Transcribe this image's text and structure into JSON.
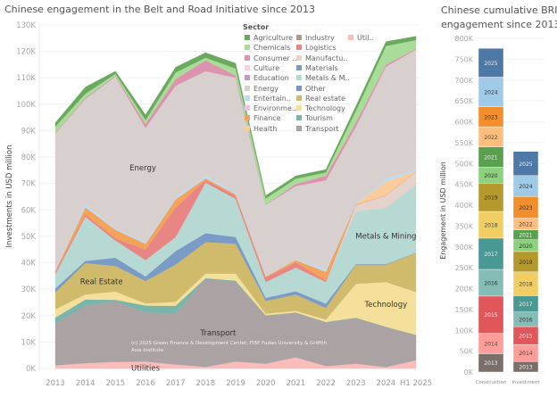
{
  "titles": {
    "main": "Chinese engagement in the Belt and Road Initiative since 2013",
    "side_line1": "Chinese cumulative BRI",
    "side_line2": "engagement since 2013"
  },
  "legend": {
    "title": "Sector",
    "items": [
      {
        "label": "Agriculture",
        "color": "#6aaa5e"
      },
      {
        "label": "Chemicals",
        "color": "#a8dc98"
      },
      {
        "label": "Consumer ..",
        "color": "#dd93b0"
      },
      {
        "label": "Culture",
        "color": "#fad0e0"
      },
      {
        "label": "Education",
        "color": "#c09ac2"
      },
      {
        "label": "Energy",
        "color": "#d7d0ce"
      },
      {
        "label": "Entertain..",
        "color": "#bfdcf2"
      },
      {
        "label": "Environme..",
        "color": "#e6c6e6"
      },
      {
        "label": "Finance",
        "color": "#f4a45a"
      },
      {
        "label": "Health",
        "color": "#fbcb9a"
      },
      {
        "label": "Industry",
        "color": "#b49a8b"
      },
      {
        "label": "Logistics",
        "color": "#e88686"
      },
      {
        "label": "Manufactu..",
        "color": "#e5d2ca"
      },
      {
        "label": "Materials",
        "color": "#7a9bc6"
      },
      {
        "label": "Metals & M..",
        "color": "#b6d9d4"
      },
      {
        "label": "Other",
        "color": "#7a96c0"
      },
      {
        "label": "Real estate",
        "color": "#d0bb6c"
      },
      {
        "label": "Technology",
        "color": "#f4e09a"
      },
      {
        "label": "Tourism",
        "color": "#79b5ac"
      },
      {
        "label": "Transport",
        "color": "#aba3a3"
      },
      {
        "label": "Util..",
        "color": "#fbbcbc"
      }
    ]
  },
  "chart_data": [
    {
      "type": "area",
      "title": "Chinese engagement in the Belt and Road Initiative since 2013",
      "xlabel": "",
      "ylabel": "Investments in USD million",
      "ylim": [
        0,
        130
      ],
      "y_unit": "K",
      "yticks": [
        "0K",
        "10K",
        "20K",
        "30K",
        "40K",
        "50K",
        "60K",
        "70K",
        "80K",
        "90K",
        "100K",
        "110K",
        "120K",
        "130K"
      ],
      "categories": [
        "2013",
        "2014",
        "2015",
        "2016",
        "2017",
        "2018",
        "2019",
        "2020",
        "2021",
        "2022",
        "2023",
        "2024",
        "H1 2025"
      ],
      "series": [
        {
          "name": "Utilities",
          "color": "#fbbcbc",
          "values": [
            1.2,
            2.0,
            2.5,
            2.6,
            1.5,
            0.6,
            2.6,
            1.8,
            4.2,
            0.9,
            1.8,
            0.5,
            3.1
          ]
        },
        {
          "name": "Transport",
          "color": "#aba3a3",
          "values": [
            15.8,
            21.8,
            22.9,
            18.6,
            19.2,
            33.3,
            30.2,
            18.3,
            17.0,
            16.5,
            17.2,
            15.2,
            9.5
          ]
        },
        {
          "name": "Tourism",
          "color": "#79b5ac",
          "values": [
            2.3,
            2.3,
            0.6,
            2.6,
            3.0,
            0.3,
            0.4,
            0,
            0,
            0.2,
            0.2,
            0.1,
            0.1
          ]
        },
        {
          "name": "Technology",
          "color": "#f4e09a",
          "values": [
            3.1,
            1.9,
            3.1,
            0.8,
            1.5,
            1.7,
            2.7,
            0.6,
            0.6,
            0.9,
            12.8,
            16.9,
            16.2
          ]
        },
        {
          "name": "Real estate",
          "color": "#d0bb6c",
          "values": [
            6.4,
            11.9,
            9.7,
            8.5,
            14.1,
            11.9,
            11.3,
            4.9,
            6.2,
            4.4,
            7.3,
            6.6,
            14.8
          ]
        },
        {
          "name": "Materials",
          "color": "#7a9bc6",
          "values": [
            1.5,
            0.8,
            3.1,
            1.7,
            5.1,
            3.4,
            2.5,
            1.1,
            1.2,
            1.6,
            0.2,
            0.2,
            0.1
          ]
        },
        {
          "name": "Metals & Mining",
          "color": "#b6d9d4",
          "values": [
            5.4,
            16.7,
            6.5,
            6.2,
            5.3,
            19.1,
            14.5,
            6.0,
            9.0,
            8.2,
            20.0,
            21.3,
            25.8
          ]
        },
        {
          "name": "Manufacturing",
          "color": "#e5d2ca",
          "values": [
            0,
            0,
            0,
            0,
            0,
            0,
            0,
            0,
            0,
            0,
            2.4,
            4.7,
            4.9
          ]
        },
        {
          "name": "Logistics",
          "color": "#e88686",
          "values": [
            0.8,
            0.9,
            0.9,
            4.0,
            11.1,
            1.1,
            1.1,
            1.7,
            1.9,
            0.6,
            0.1,
            0,
            0
          ]
        },
        {
          "name": "Finance",
          "color": "#f4a45a",
          "values": [
            0.5,
            2.7,
            3.2,
            2.2,
            3.2,
            0.6,
            0.6,
            0.4,
            0.9,
            3.3,
            0.1,
            0.1,
            0.1
          ]
        },
        {
          "name": "Health",
          "color": "#fbcb9a",
          "values": [
            0,
            0,
            0,
            0,
            0,
            0,
            0,
            0,
            0,
            0,
            0.1,
            5.1,
            0.1
          ]
        },
        {
          "name": "Entertainment",
          "color": "#bfdcf2",
          "values": [
            0.5,
            1.1,
            0.4,
            0.8,
            0.7,
            1.0,
            0.5,
            0.2,
            0.2,
            1.1,
            0.2,
            1.1,
            0.6
          ]
        },
        {
          "name": "Energy",
          "color": "#d7d0ce",
          "values": [
            51.4,
            39.9,
            57.6,
            43.0,
            42.3,
            39.5,
            43.6,
            26.9,
            27.8,
            33.5,
            29.1,
            42.4,
            45.4
          ]
        },
        {
          "name": "Consumer",
          "color": "#dd93b0",
          "values": [
            0.3,
            0.4,
            0.3,
            1.5,
            2.5,
            4.1,
            0.8,
            0.1,
            0.8,
            1.7,
            1.5,
            0.8,
            0.3
          ]
        },
        {
          "name": "Chemicals",
          "color": "#a8dc98",
          "values": [
            2.3,
            1.6,
            0.7,
            1.5,
            2.5,
            1.0,
            2.7,
            2.3,
            2.0,
            1.3,
            4.5,
            7.0,
            3.3
          ]
        },
        {
          "name": "Agriculture",
          "color": "#6aaa5e",
          "values": [
            1.5,
            2.5,
            1.0,
            2.0,
            2.0,
            1.9,
            2.0,
            1.1,
            1.1,
            1.1,
            1.8,
            1.7,
            1.4
          ]
        }
      ],
      "annotations": [
        {
          "text": "Energy",
          "series": "Energy",
          "year": "2016"
        },
        {
          "text": "Real Estate",
          "series": "Real estate",
          "year": "2014"
        },
        {
          "text": "Transport",
          "series": "Transport",
          "year": "2018"
        },
        {
          "text": "Utilities",
          "series": "Utilities",
          "year": "2016"
        },
        {
          "text": "Metals & Mining",
          "series": "Metals & Mining",
          "year": "2024"
        },
        {
          "text": "Technology",
          "series": "Technology",
          "year": "2024"
        }
      ],
      "credit": "(c) 2025 Green Finance & Development Center, FISF Fudan University & Griffith Asia Institute"
    },
    {
      "type": "bar",
      "stacked": true,
      "title": "Chinese cumulative BRI engagement since 2013",
      "ylabel": "Engagement in USD million",
      "ylim": [
        0,
        800
      ],
      "y_unit": "K",
      "yticks": [
        "0K",
        "50K",
        "100K",
        "150K",
        "200K",
        "250K",
        "300K",
        "350K",
        "400K",
        "450K",
        "500K",
        "550K",
        "600K",
        "650K",
        "700K",
        "750K",
        "800K"
      ],
      "categories": [
        "Construction",
        "Investment"
      ],
      "segments": [
        {
          "year": "2013",
          "color": "#7b6f6a",
          "text_color": "#eee",
          "values": [
            44,
            25
          ]
        },
        {
          "year": "2014",
          "color": "#ff9d9a",
          "text_color": "#444",
          "values": [
            49,
            41
          ]
        },
        {
          "year": "2015",
          "color": "#e15759",
          "text_color": "#fde",
          "values": [
            89,
            43
          ]
        },
        {
          "year": "2016",
          "color": "#86bcb6",
          "text_color": "#333",
          "values": [
            64,
            35
          ]
        },
        {
          "year": "2017",
          "color": "#499894",
          "text_color": "#eee",
          "values": [
            75,
            39
          ]
        },
        {
          "year": "2018",
          "color": "#f1ce63",
          "text_color": "#444",
          "values": [
            64,
            57
          ]
        },
        {
          "year": "2019",
          "color": "#b6992d",
          "text_color": "#333",
          "values": [
            68,
            49
          ]
        },
        {
          "year": "2020",
          "color": "#8cd17d",
          "text_color": "#333",
          "values": [
            38,
            28
          ]
        },
        {
          "year": "2021",
          "color": "#59a14f",
          "text_color": "#eee",
          "values": [
            49,
            24
          ]
        },
        {
          "year": "2022",
          "color": "#ffbe7d",
          "text_color": "#444",
          "values": [
            48,
            28
          ]
        },
        {
          "year": "2023",
          "color": "#f28e2b",
          "text_color": "#333",
          "values": [
            48,
            52
          ]
        },
        {
          "year": "2024",
          "color": "#a0cbe8",
          "text_color": "#333",
          "values": [
            71,
            50
          ]
        },
        {
          "year": "2025",
          "color": "#4e79a7",
          "text_color": "#eee",
          "values": [
            69,
            58
          ]
        }
      ]
    }
  ]
}
